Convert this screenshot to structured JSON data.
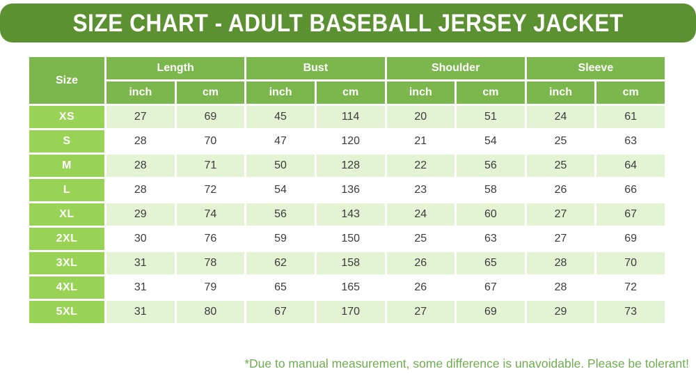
{
  "banner": {
    "title": "SIZE CHART - ADULT BASEBALL JERSEY JACKET"
  },
  "table": {
    "size_header": "Size",
    "groups": [
      "Length",
      "Bust",
      "Shoulder",
      "Sleeve"
    ],
    "sub_headers": [
      "inch",
      "cm"
    ],
    "rows": [
      {
        "size": "XS",
        "values": [
          "27",
          "69",
          "45",
          "114",
          "20",
          "51",
          "24",
          "61"
        ]
      },
      {
        "size": "S",
        "values": [
          "28",
          "70",
          "47",
          "120",
          "21",
          "54",
          "25",
          "63"
        ]
      },
      {
        "size": "M",
        "values": [
          "28",
          "71",
          "50",
          "128",
          "22",
          "56",
          "25",
          "64"
        ]
      },
      {
        "size": "L",
        "values": [
          "28",
          "72",
          "54",
          "136",
          "23",
          "58",
          "26",
          "66"
        ]
      },
      {
        "size": "XL",
        "values": [
          "29",
          "74",
          "56",
          "143",
          "24",
          "60",
          "27",
          "67"
        ]
      },
      {
        "size": "2XL",
        "values": [
          "30",
          "76",
          "59",
          "150",
          "25",
          "63",
          "27",
          "69"
        ]
      },
      {
        "size": "3XL",
        "values": [
          "31",
          "78",
          "62",
          "158",
          "26",
          "65",
          "28",
          "70"
        ]
      },
      {
        "size": "4XL",
        "values": [
          "31",
          "79",
          "65",
          "165",
          "26",
          "67",
          "28",
          "72"
        ]
      },
      {
        "size": "5XL",
        "values": [
          "31",
          "80",
          "67",
          "170",
          "27",
          "69",
          "29",
          "73"
        ]
      }
    ]
  },
  "footer": {
    "note": "*Due to manual measurement, some difference is unavoidable. Please be tolerant!"
  },
  "colors": {
    "banner_green": "#5b9130",
    "header_green": "#7cb74d",
    "size_green": "#99d355",
    "tint_green": "#e4f3d3",
    "note_green": "#6fad4f"
  },
  "chart_data": {
    "type": "table",
    "title": "SIZE CHART - ADULT BASEBALL JERSEY JACKET",
    "columns": [
      "Size",
      "Length inch",
      "Length cm",
      "Bust inch",
      "Bust cm",
      "Shoulder inch",
      "Shoulder cm",
      "Sleeve inch",
      "Sleeve cm"
    ],
    "rows": [
      [
        "XS",
        27,
        69,
        45,
        114,
        20,
        51,
        24,
        61
      ],
      [
        "S",
        28,
        70,
        47,
        120,
        21,
        54,
        25,
        63
      ],
      [
        "M",
        28,
        71,
        50,
        128,
        22,
        56,
        25,
        64
      ],
      [
        "L",
        28,
        72,
        54,
        136,
        23,
        58,
        26,
        66
      ],
      [
        "XL",
        29,
        74,
        56,
        143,
        24,
        60,
        27,
        67
      ],
      [
        "2XL",
        30,
        76,
        59,
        150,
        25,
        63,
        27,
        69
      ],
      [
        "3XL",
        31,
        78,
        62,
        158,
        26,
        65,
        28,
        70
      ],
      [
        "4XL",
        31,
        79,
        65,
        165,
        26,
        67,
        28,
        72
      ],
      [
        "5XL",
        31,
        80,
        67,
        170,
        27,
        69,
        29,
        73
      ]
    ],
    "annotations": [
      "*Due to manual measurement, some difference is unavoidable. Please be tolerant!"
    ],
    "layout": {
      "alternating_row_tint": true,
      "header_rows": 2
    }
  }
}
